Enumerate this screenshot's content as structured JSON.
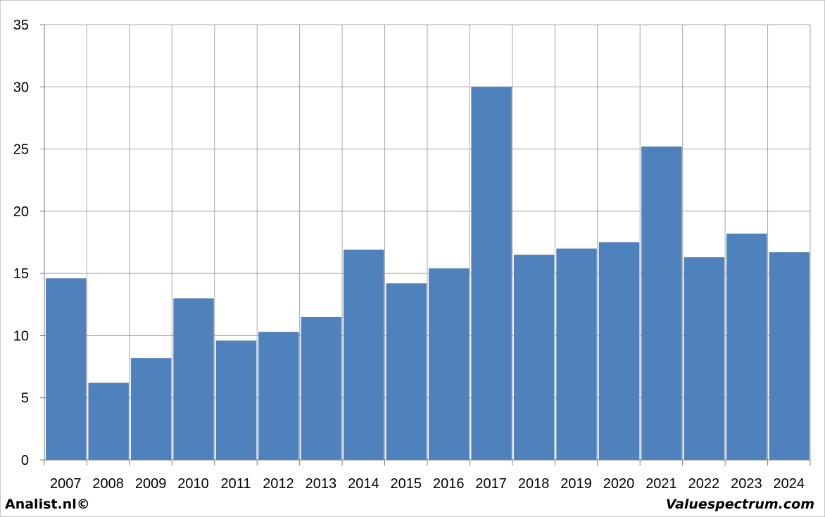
{
  "chart_data": {
    "type": "bar",
    "categories": [
      "2007",
      "2008",
      "2009",
      "2010",
      "2011",
      "2012",
      "2013",
      "2014",
      "2015",
      "2016",
      "2017",
      "2018",
      "2019",
      "2020",
      "2021",
      "2022",
      "2023",
      "2024"
    ],
    "values": [
      14.6,
      6.2,
      8.2,
      13.0,
      9.6,
      10.3,
      11.5,
      16.9,
      14.2,
      15.4,
      30.0,
      16.5,
      17.0,
      17.5,
      25.2,
      16.3,
      18.2,
      16.7
    ],
    "title": "",
    "xlabel": "",
    "ylabel": "",
    "ylim": [
      0,
      35
    ],
    "yticks": [
      "0",
      "5",
      "10",
      "15",
      "20",
      "25",
      "30",
      "35"
    ],
    "grid": true,
    "bar_color": "#4f81bd",
    "grid_color": "#a6a6a6"
  },
  "footer": {
    "left": "Analist.nl©",
    "right": "Valuespectrum.com"
  }
}
